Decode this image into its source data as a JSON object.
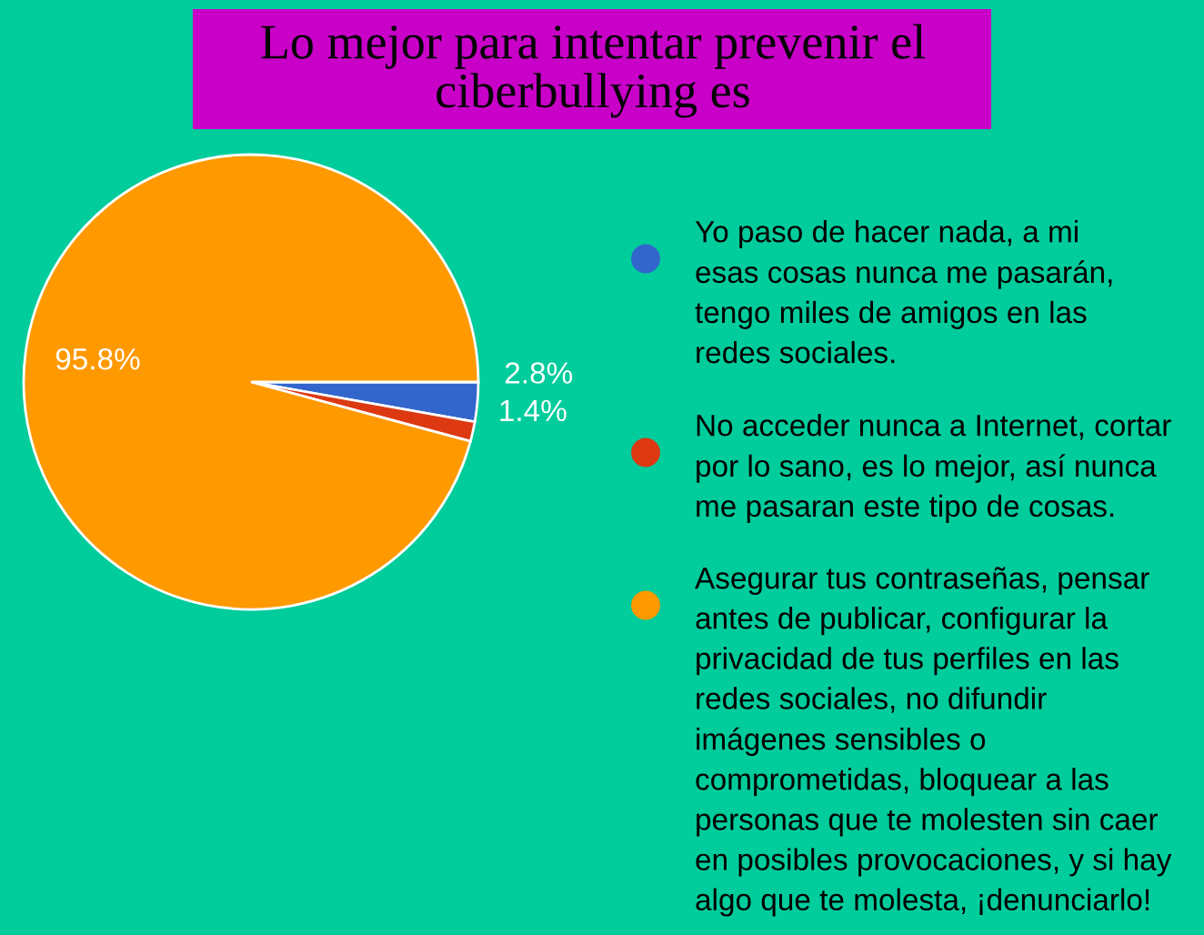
{
  "chart_data": {
    "type": "pie",
    "title": "Lo mejor para intentar prevenir el\nciberbullying es",
    "categories": [
      "Yo paso de hacer nada, a mi\nesas cosas nunca me pasarán,\ntengo miles de amigos en las\nredes sociales.",
      "No acceder nunca a Internet, cortar\npor lo sano, es lo mejor, así nunca\nme pasaran este tipo de cosas.",
      "Asegurar tus contraseñas, pensar\nantes de publicar, configurar la\nprivacidad de tus perfiles en las\nredes sociales, no difundir\nimágenes sensibles o\ncomprometidas, bloquear a las\npersonas que te molesten sin caer\nen posibles provocaciones, y si hay\nalgo que te molesta, ¡denunciarlo!"
    ],
    "values": [
      2.8,
      1.4,
      95.8
    ],
    "colors": [
      "#3366cc",
      "#dc3912",
      "#ff9900"
    ],
    "value_labels": [
      "2.8%",
      "1.4%",
      "95.8%"
    ],
    "legend": "right"
  }
}
